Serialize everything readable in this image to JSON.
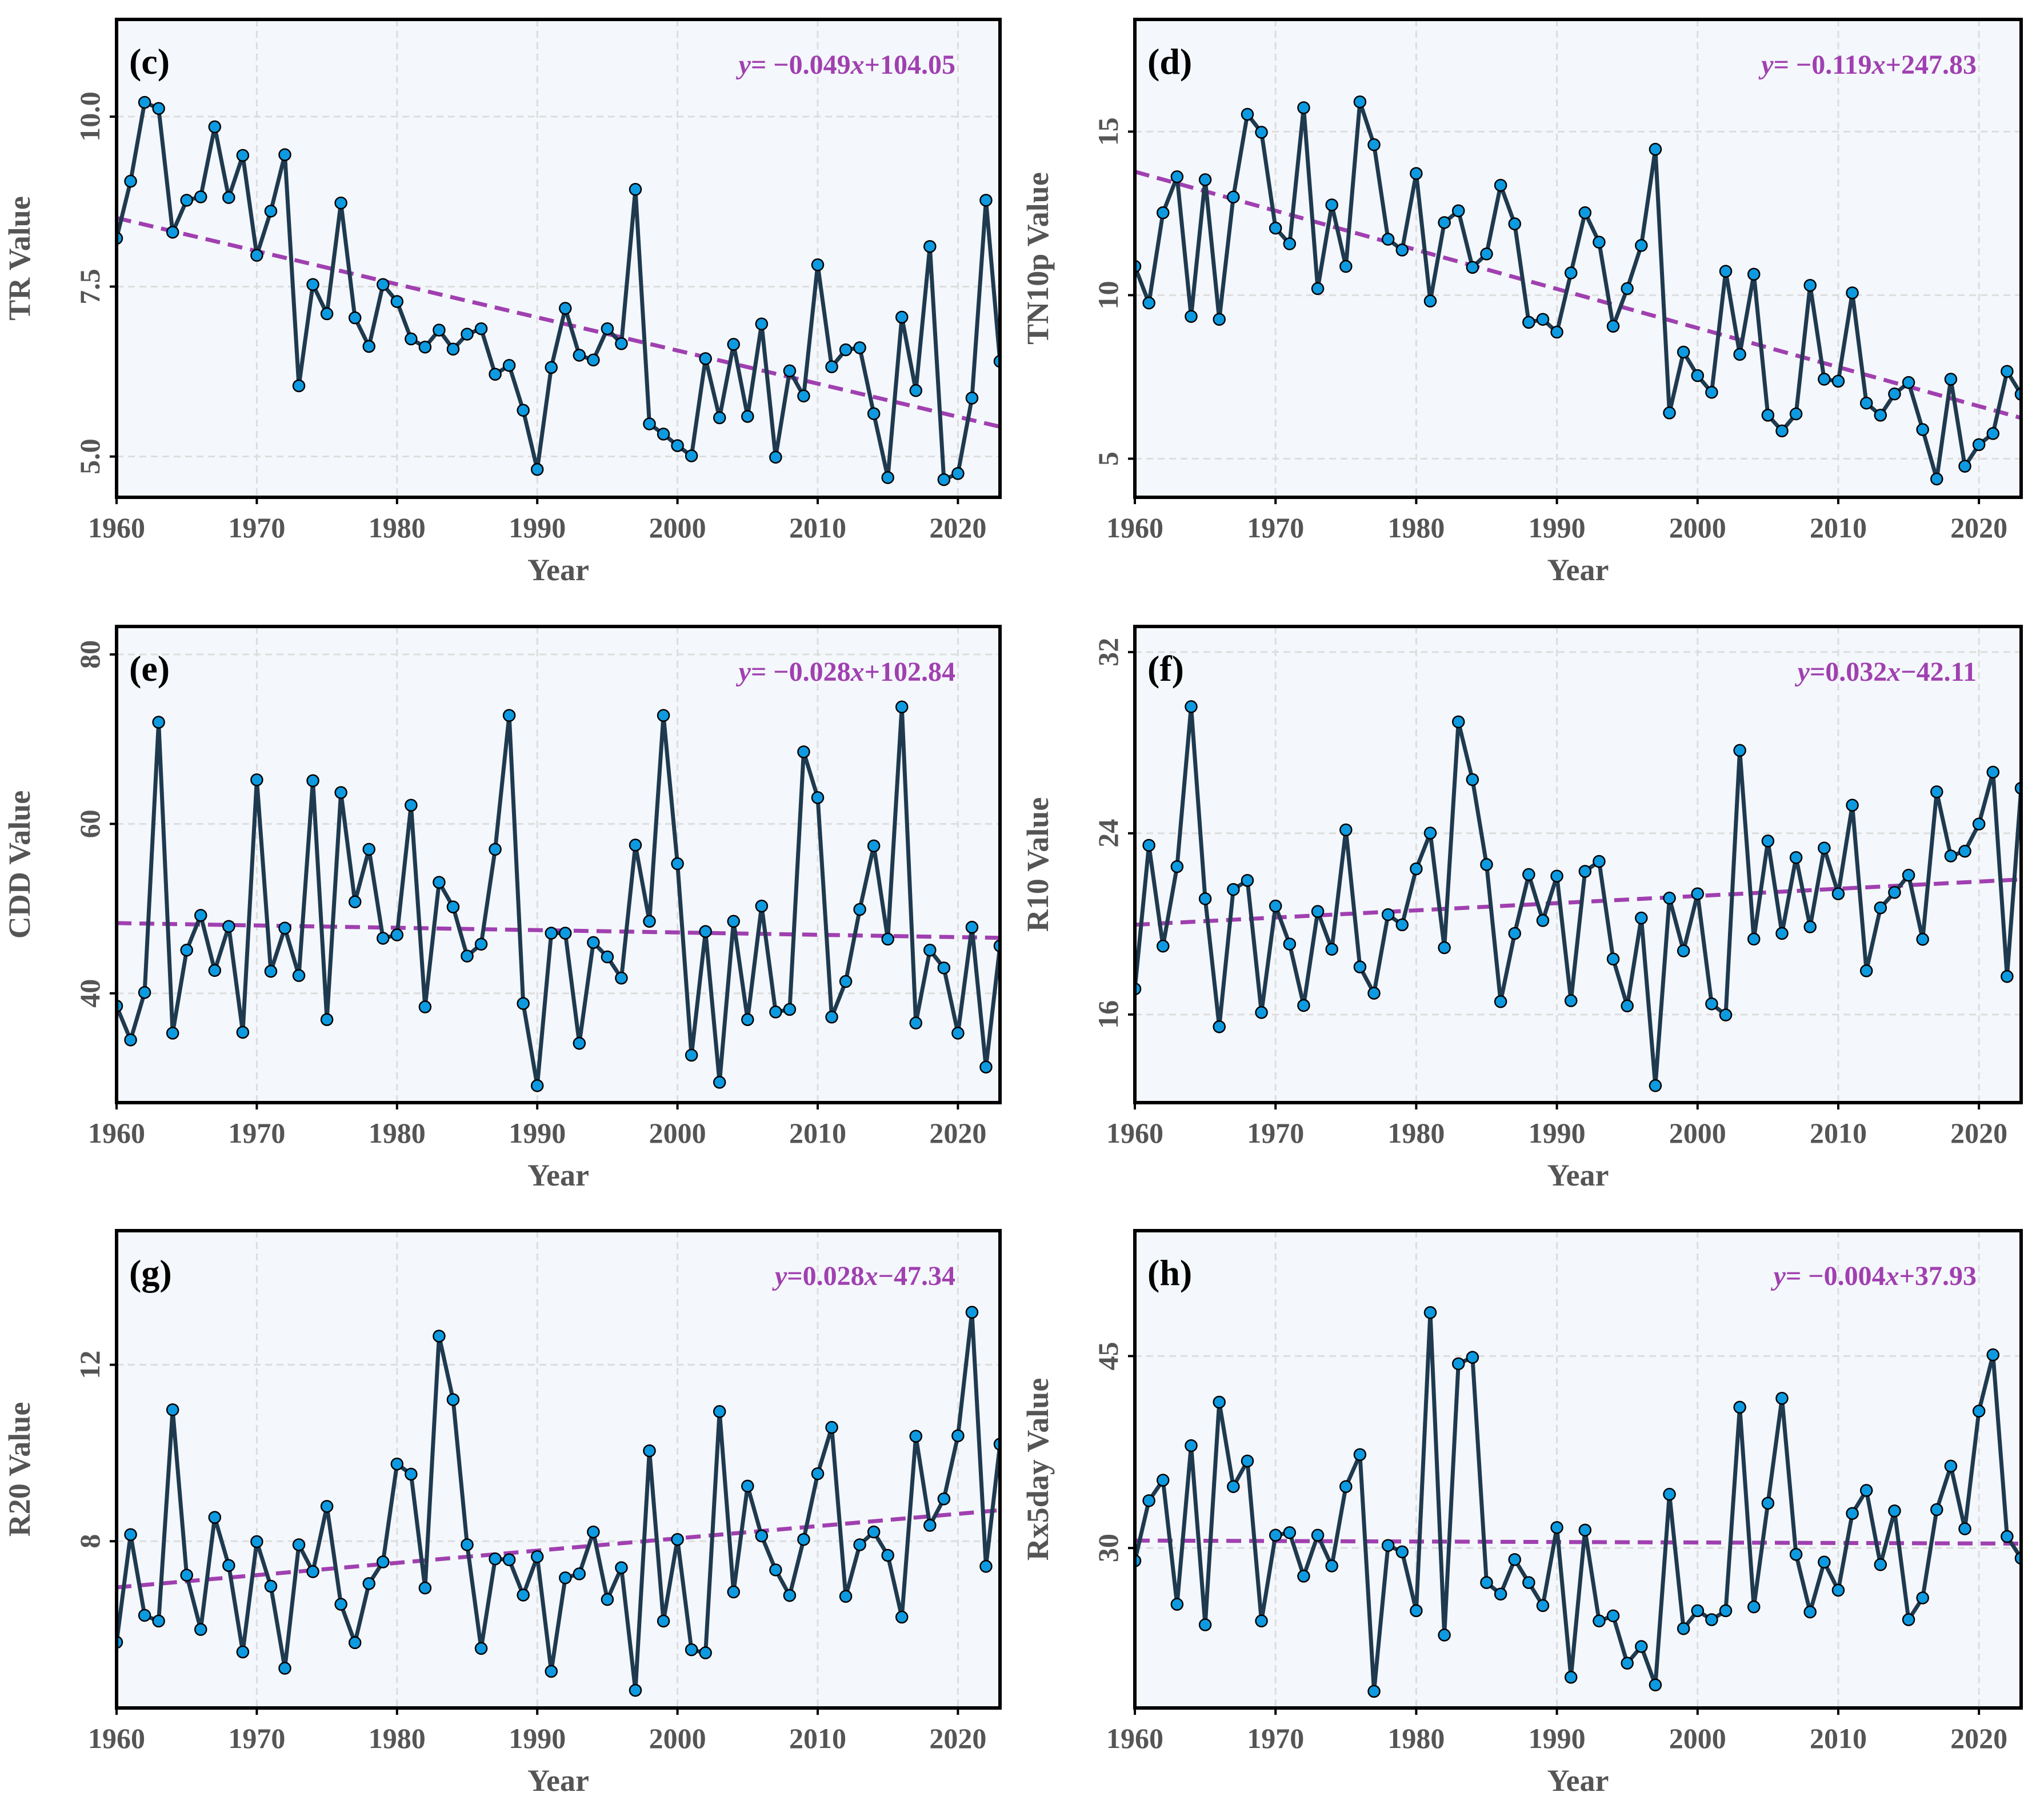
{
  "colors": {
    "line": "#1f3a4f",
    "marker": "#0d9ae0",
    "marker_edge": "#000000",
    "trend": "#a040b0",
    "background": "#f4f7fb",
    "grid": "#dddddd"
  },
  "chart_data": [
    {
      "type": "line",
      "panel": "(c)",
      "title": "",
      "xlabel": "Year",
      "ylabel": "TR Value",
      "equation": {
        "y": "y",
        "eq": "= −0.049",
        "x": "x",
        "rest": "+104.05"
      },
      "xlim": [
        1960,
        2023
      ],
      "ylim": [
        4.4,
        11.43
      ],
      "xticks": [
        1960,
        1970,
        1980,
        1990,
        2000,
        2010,
        2020
      ],
      "yticks": [
        5.0,
        7.5,
        10.0
      ],
      "ytick_labels": [
        "5.0",
        "7.5",
        "10.0"
      ],
      "values": [
        8.21,
        9.05,
        10.21,
        10.12,
        8.3,
        8.77,
        8.82,
        9.85,
        8.81,
        9.43,
        7.96,
        8.61,
        9.44,
        6.04,
        7.53,
        7.1,
        8.73,
        7.04,
        6.62,
        7.53,
        7.28,
        6.73,
        6.61,
        6.86,
        6.58,
        6.8,
        6.88,
        6.21,
        6.34,
        5.68,
        4.81,
        6.31,
        7.18,
        6.49,
        6.42,
        6.88,
        6.66,
        8.93,
        5.48,
        5.33,
        5.16,
        5.01,
        6.44,
        5.57,
        6.65,
        5.59,
        6.95,
        4.99,
        6.26,
        5.89,
        7.82,
        6.32,
        6.57,
        6.6,
        5.63,
        4.69,
        7.05,
        5.97,
        8.09,
        4.66,
        4.75,
        5.86,
        8.77,
        6.4
      ],
      "trend": {
        "slope": -0.049,
        "intercept": 104.05
      }
    },
    {
      "type": "line",
      "panel": "(d)",
      "title": "",
      "xlabel": "Year",
      "ylabel": "TN10p Value",
      "equation": {
        "y": "y",
        "eq": "= −0.119",
        "x": "x",
        "rest": "+247.83"
      },
      "xlim": [
        1960,
        2023
      ],
      "ylim": [
        3.82,
        18.43
      ],
      "xticks": [
        1960,
        1970,
        1980,
        1990,
        2000,
        2010,
        2020
      ],
      "yticks": [
        5,
        10,
        15
      ],
      "ytick_labels": [
        "5",
        "10",
        "15"
      ],
      "values": [
        10.88,
        9.76,
        12.52,
        13.62,
        9.35,
        13.53,
        9.26,
        13.0,
        15.53,
        14.98,
        12.05,
        11.57,
        15.73,
        10.2,
        12.76,
        10.88,
        15.91,
        14.6,
        11.71,
        11.38,
        13.72,
        9.82,
        12.22,
        12.58,
        10.85,
        11.26,
        13.36,
        12.18,
        9.17,
        9.26,
        8.87,
        10.68,
        12.52,
        11.62,
        9.05,
        10.2,
        11.52,
        14.46,
        6.4,
        8.26,
        7.54,
        7.03,
        10.73,
        8.19,
        10.64,
        6.33,
        5.85,
        6.37,
        10.3,
        7.43,
        7.37,
        10.07,
        6.7,
        6.33,
        6.98,
        7.33,
        5.89,
        4.38,
        7.43,
        4.77,
        5.43,
        5.77,
        7.67,
        6.97
      ],
      "trend": {
        "slope": -0.119,
        "intercept": 247.83
      }
    },
    {
      "type": "line",
      "panel": "(e)",
      "title": "",
      "xlabel": "Year",
      "ylabel": "CDD Value",
      "equation": {
        "y": "y",
        "eq": "= −0.028",
        "x": "x",
        "rest": "+102.84"
      },
      "xlim": [
        1960,
        2023
      ],
      "ylim": [
        27.1,
        83.3
      ],
      "xticks": [
        1960,
        1970,
        1980,
        1990,
        2000,
        2010,
        2020
      ],
      "yticks": [
        40,
        60,
        80
      ],
      "ytick_labels": [
        "40",
        "60",
        "80"
      ],
      "values": [
        38.5,
        34.5,
        40.1,
        72.0,
        35.3,
        45.1,
        49.2,
        42.7,
        47.9,
        35.4,
        65.2,
        42.6,
        47.7,
        42.1,
        65.1,
        36.9,
        63.7,
        50.8,
        57.0,
        46.5,
        46.9,
        62.2,
        38.4,
        53.1,
        50.2,
        44.4,
        45.8,
        57.0,
        72.8,
        38.8,
        29.1,
        47.1,
        47.1,
        34.1,
        46.0,
        44.3,
        41.8,
        57.5,
        48.5,
        72.8,
        55.3,
        32.7,
        47.3,
        29.5,
        48.5,
        36.9,
        50.3,
        37.8,
        38.1,
        68.5,
        63.1,
        37.2,
        41.4,
        49.9,
        57.4,
        46.4,
        73.8,
        36.5,
        45.1,
        43.0,
        35.3,
        47.8,
        31.3,
        45.6
      ],
      "trend": {
        "slope": -0.028,
        "intercept": 102.84
      }
    },
    {
      "type": "line",
      "panel": "(f)",
      "title": "",
      "xlabel": "Year",
      "ylabel": "R10 Value",
      "equation": {
        "y": "y",
        "eq": "=0.032",
        "x": "x",
        "rest": "−42.11"
      },
      "xlim": [
        1960,
        2023
      ],
      "ylim": [
        12.11,
        33.13
      ],
      "xticks": [
        1960,
        1970,
        1980,
        1990,
        2000,
        2010,
        2020
      ],
      "yticks": [
        16,
        24,
        32
      ],
      "ytick_labels": [
        "16",
        "24",
        "32"
      ],
      "values": [
        17.13,
        23.47,
        19.02,
        22.53,
        29.59,
        21.11,
        15.46,
        21.52,
        21.92,
        16.09,
        20.79,
        19.11,
        16.4,
        20.55,
        18.88,
        24.15,
        18.1,
        16.94,
        20.41,
        19.96,
        22.43,
        24.01,
        18.95,
        28.92,
        26.37,
        22.62,
        16.57,
        19.58,
        22.18,
        20.15,
        22.11,
        16.61,
        22.32,
        22.76,
        18.45,
        16.38,
        20.26,
        12.86,
        21.14,
        18.81,
        21.33,
        16.47,
        15.98,
        27.66,
        19.33,
        23.66,
        19.58,
        22.93,
        19.87,
        23.35,
        21.33,
        25.24,
        17.93,
        20.71,
        21.39,
        22.15,
        19.32,
        25.83,
        23.0,
        23.21,
        24.41,
        26.7,
        17.68,
        25.99
      ],
      "trend": {
        "slope": 0.032,
        "intercept": -42.11
      }
    },
    {
      "type": "line",
      "panel": "(g)",
      "title": "",
      "xlabel": "Year",
      "ylabel": "R20 Value",
      "equation": {
        "y": "y",
        "eq": "=0.028",
        "x": "x",
        "rest": "−47.34"
      },
      "xlim": [
        1960,
        2023
      ],
      "ylim": [
        4.22,
        15.04
      ],
      "xticks": [
        1960,
        1970,
        1980,
        1990,
        2000,
        2010,
        2020
      ],
      "yticks": [
        8,
        12
      ],
      "ytick_labels": [
        "8",
        "12"
      ],
      "values": [
        5.71,
        8.15,
        6.32,
        6.19,
        10.98,
        7.23,
        6.0,
        8.54,
        7.45,
        5.49,
        7.99,
        6.98,
        5.12,
        7.92,
        7.31,
        8.79,
        6.57,
        5.7,
        7.04,
        7.53,
        9.75,
        9.52,
        6.94,
        12.65,
        11.21,
        7.92,
        5.57,
        7.6,
        7.58,
        6.78,
        7.65,
        5.05,
        7.17,
        7.26,
        8.21,
        6.68,
        7.4,
        4.62,
        10.05,
        6.19,
        8.04,
        5.54,
        5.47,
        10.94,
        6.85,
        9.25,
        8.12,
        7.35,
        6.77,
        8.04,
        9.53,
        10.58,
        6.75,
        7.92,
        8.21,
        7.68,
        6.28,
        10.38,
        8.36,
        8.96,
        10.39,
        13.19,
        7.43,
        10.2
      ],
      "trend": {
        "slope": 0.028,
        "intercept": -47.34
      }
    },
    {
      "type": "line",
      "panel": "(h)",
      "title": "",
      "xlabel": "Year",
      "ylabel": "Rx5day Value",
      "equation": {
        "y": "y",
        "eq": "= −0.004",
        "x": "x",
        "rest": "+37.93"
      },
      "xlim": [
        1960,
        2023
      ],
      "ylim": [
        17.5,
        54.8
      ],
      "xticks": [
        1960,
        1970,
        1980,
        1990,
        2000,
        2010,
        2020
      ],
      "yticks": [
        30,
        45
      ],
      "ytick_labels": [
        "30",
        "45"
      ],
      "values": [
        29.0,
        33.7,
        35.3,
        25.6,
        38.0,
        24.0,
        41.4,
        34.8,
        36.8,
        24.3,
        31.0,
        31.2,
        27.8,
        31.0,
        28.6,
        34.8,
        37.3,
        18.8,
        30.2,
        29.7,
        25.1,
        48.4,
        23.2,
        44.4,
        44.9,
        27.3,
        26.4,
        29.1,
        27.3,
        25.5,
        31.6,
        19.9,
        31.4,
        24.3,
        24.7,
        21.0,
        22.3,
        19.3,
        34.2,
        23.7,
        25.1,
        24.4,
        25.1,
        41.0,
        25.4,
        33.5,
        41.7,
        29.5,
        25.0,
        28.9,
        26.7,
        32.7,
        34.5,
        28.7,
        32.9,
        24.4,
        26.1,
        33.0,
        36.4,
        31.5,
        40.7,
        45.1,
        30.9,
        29.2
      ],
      "trend": {
        "slope": -0.004,
        "intercept": 37.93
      }
    }
  ]
}
